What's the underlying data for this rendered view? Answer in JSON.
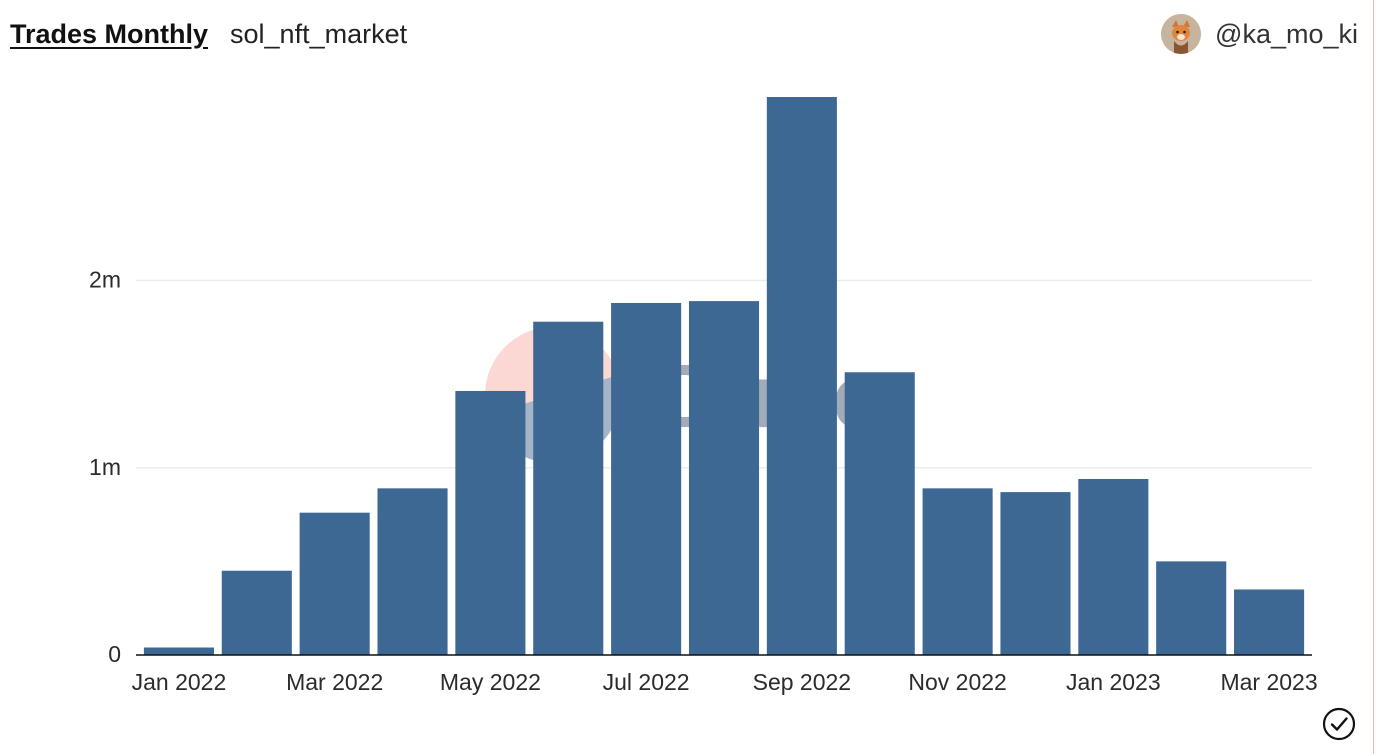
{
  "header": {
    "title": "Trades Monthly",
    "subtitle": "sol_nft_market"
  },
  "author": {
    "handle": "@ka_mo_ki",
    "avatar_icon": "fox-avatar-icon"
  },
  "watermark": {
    "text": "Dune"
  },
  "status": {
    "icon": "check-circle-icon"
  },
  "colors": {
    "bar": "#3d6894",
    "grid": "#ececec",
    "axis": "#111111",
    "tick_text": "#2b2b2b",
    "watermark_text": "#233a55",
    "watermark_logo_top": "#f6a39a",
    "watermark_logo_bottom": "#2c4f7a"
  },
  "chart_data": {
    "type": "bar",
    "title": "Trades Monthly",
    "xlabel": "",
    "ylabel": "",
    "categories": [
      "Jan 2022",
      "Feb 2022",
      "Mar 2022",
      "Apr 2022",
      "May 2022",
      "Jun 2022",
      "Jul 2022",
      "Aug 2022",
      "Sep 2022",
      "Oct 2022",
      "Nov 2022",
      "Dec 2022",
      "Jan 2023",
      "Feb 2023",
      "Mar 2023"
    ],
    "x_tick_labels": [
      "Jan 2022",
      "Mar 2022",
      "May 2022",
      "Jul 2022",
      "Sep 2022",
      "Nov 2022",
      "Jan 2023",
      "Mar 2023"
    ],
    "values": [
      40000,
      450000,
      760000,
      890000,
      1410000,
      1780000,
      1880000,
      1890000,
      2980000,
      1510000,
      890000,
      870000,
      940000,
      500000,
      350000
    ],
    "ylim": [
      0,
      2980000
    ],
    "y_ticks": [
      {
        "value": 0,
        "label": "0"
      },
      {
        "value": 1000000,
        "label": "1m"
      },
      {
        "value": 2000000,
        "label": "2m"
      }
    ],
    "grid": true,
    "legend": "none"
  }
}
